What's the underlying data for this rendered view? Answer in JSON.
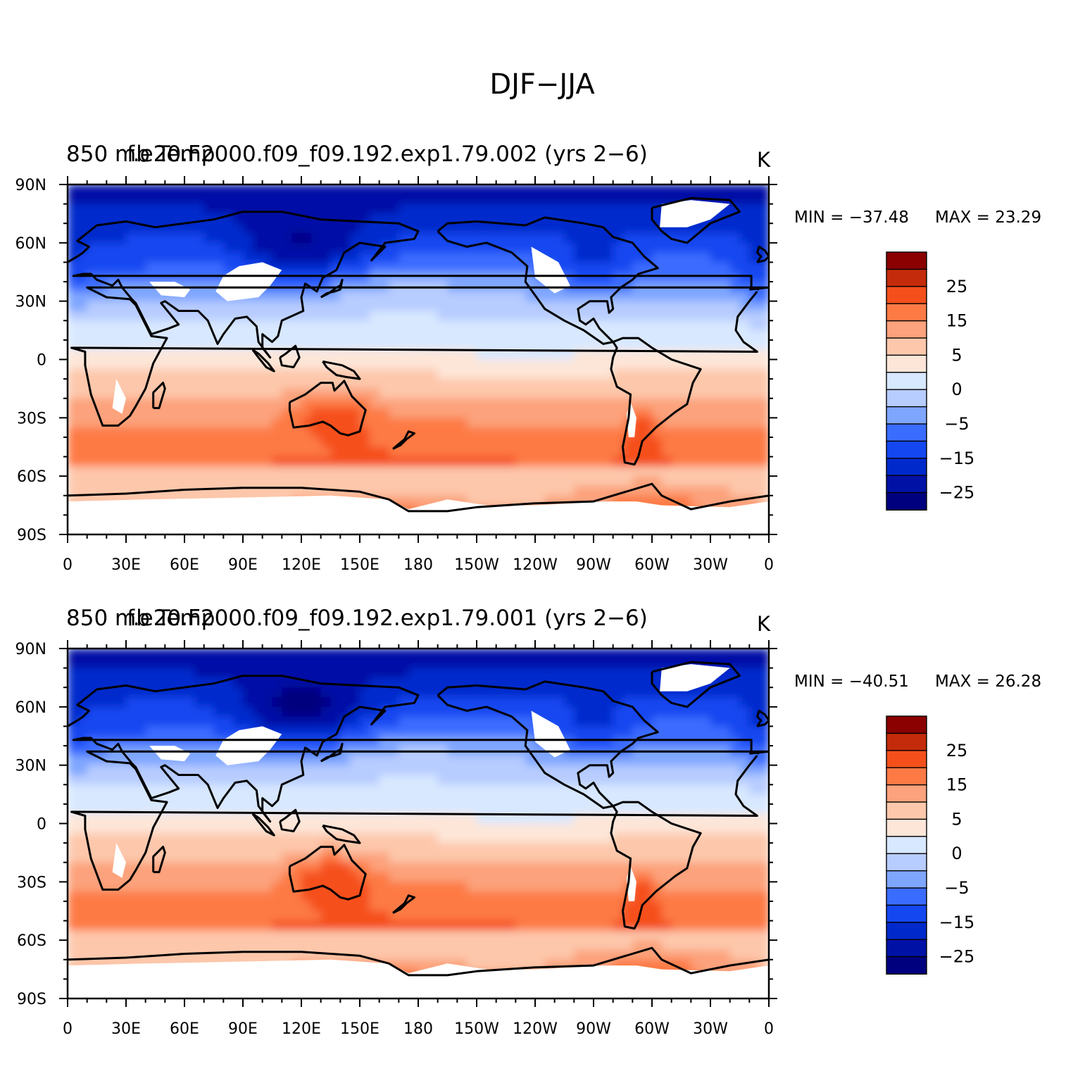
{
  "chart_data": {
    "type": "heatmap",
    "title": "DJF−JJA",
    "panels": [
      {
        "left_title": "850 mb Temp",
        "center_title": "f.e20.F2000.f09_f09.192.exp1.79.002 (yrs 2−6)",
        "units": "K",
        "min_label": "MIN = −37.48",
        "max_label": "MAX =   23.29",
        "min": -37.48,
        "max": 23.29
      },
      {
        "left_title": "850 mb Temp",
        "center_title": "f.e20.F2000.f09_f09.192.exp1.79.001 (yrs 2−6)",
        "units": "K",
        "min_label": "MIN = −40.51",
        "max_label": "MAX =   26.28",
        "min": -40.51,
        "max": 26.28
      }
    ],
    "x_ticks": [
      "0",
      "30E",
      "60E",
      "90E",
      "120E",
      "150E",
      "180",
      "150W",
      "120W",
      "90W",
      "60W",
      "30W",
      "0"
    ],
    "y_ticks": [
      "90N",
      "60N",
      "30N",
      "0",
      "30S",
      "60S",
      "90S"
    ],
    "xlim": [
      0,
      360
    ],
    "ylim": [
      -90,
      90
    ],
    "contour_levels": [
      -35,
      -30,
      -25,
      -20,
      -15,
      -10,
      -5,
      0,
      5,
      10,
      15,
      20,
      25,
      30
    ],
    "colorbar_labels": [
      "25",
      "15",
      "5",
      "0",
      "−5",
      "−15",
      "−25"
    ],
    "colorbar_colors": [
      "#00007f",
      "#0011a6",
      "#0029cc",
      "#1447f0",
      "#3a6cff",
      "#7fa6ff",
      "#b7ccff",
      "#d8e8ff",
      "#fde6d8",
      "#fdc7ab",
      "#fca27c",
      "#fd7a45",
      "#f5501c",
      "#c42b0a",
      "#8b0000"
    ],
    "missing_color": "#ffffff",
    "coastline_color": "#000000"
  }
}
